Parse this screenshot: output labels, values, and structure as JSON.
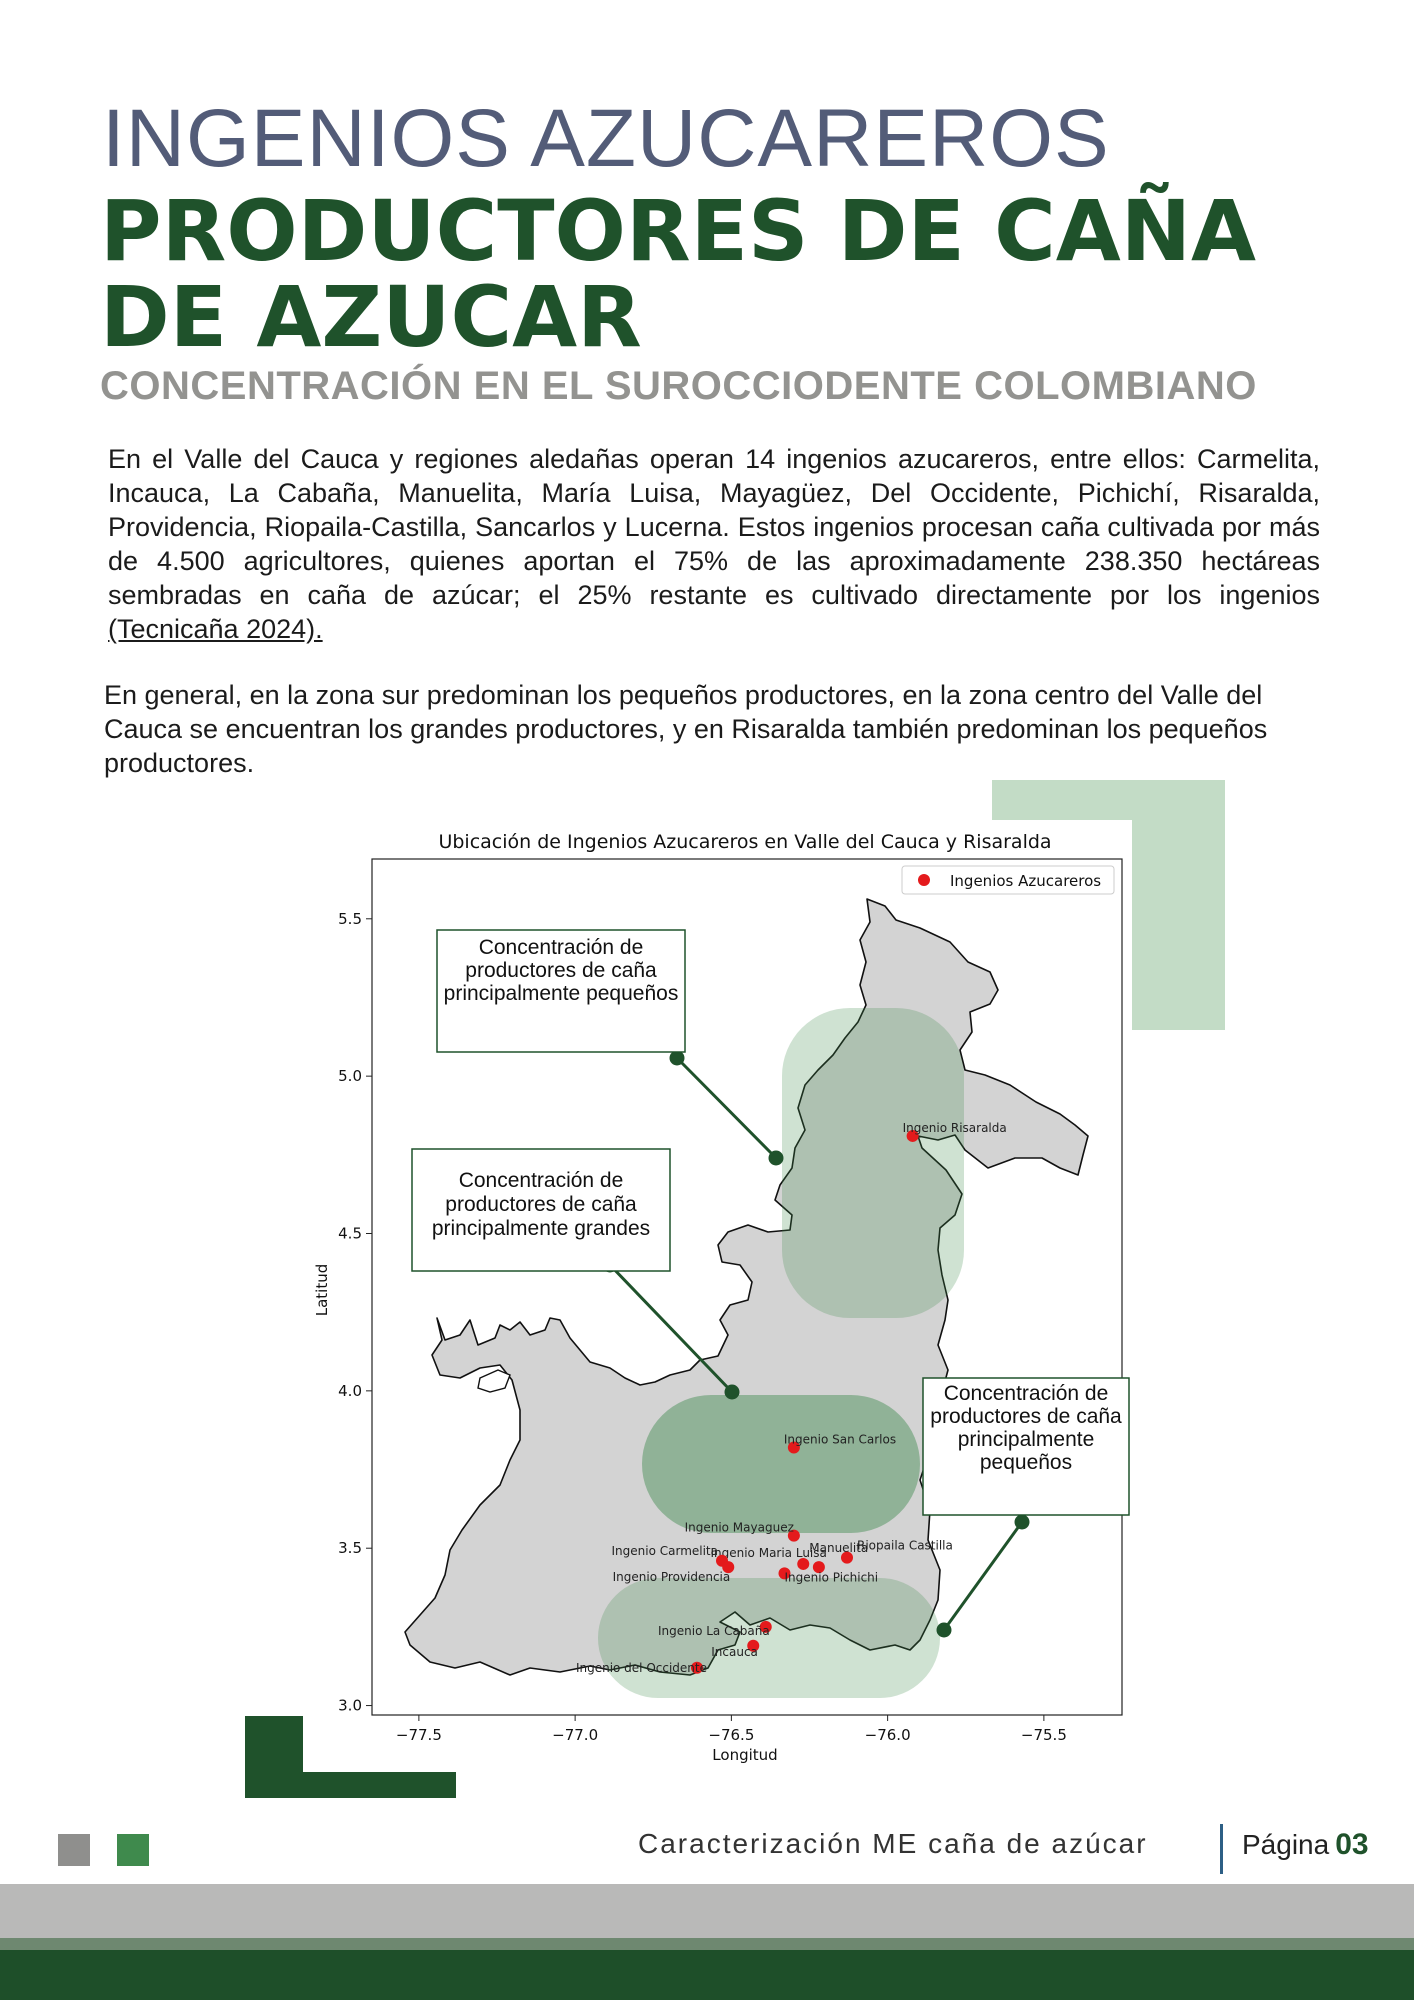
{
  "header": {
    "title_line1": "INGENIOS AZUCAREROS",
    "title_line2": "PRODUCTORES DE CAÑA DE AZUCAR",
    "subtitle": "CONCENTRACIÓN EN EL SUROCCIODENTE COLOMBIANO"
  },
  "body": {
    "paragraph1": "En el Valle del Cauca y regiones aledañas operan 14 ingenios azucareros, entre ellos: Carmelita, Incauca, La Cabaña, Manuelita, María Luisa, Mayagüez, Del Occidente, Pichichí, Risaralda, Providencia, Riopaila-Castilla, Sancarlos y Lucerna.  Estos ingenios procesan caña cultivada por más de 4.500 agricultores, quienes aportan el 75% de las aproximadamente 238.350 hectáreas sembradas en caña de azúcar; el 25% restante es cultivado directamente por los ingenios ",
    "citation": "(Tecnicaña 2024).",
    "paragraph2": "En general, en la zona sur predominan los pequeños productores, en la zona centro del Valle del Cauca se encuentran los grandes productores, y en Risaralda también predominan los pequeños productores."
  },
  "chart_data": {
    "type": "scatter",
    "title": "Ubicación de Ingenios Azucareros en Valle del Cauca y Risaralda",
    "xlabel": "Longitud",
    "ylabel": "Latitud",
    "xlim": [
      -77.65,
      -75.25
    ],
    "ylim": [
      2.97,
      5.69
    ],
    "xticks": [
      -77.5,
      -77.0,
      -76.5,
      -76.0,
      -75.5
    ],
    "xtick_labels": [
      "−77.5",
      "−77.0",
      "−76.5",
      "−76.0",
      "−75.5"
    ],
    "yticks": [
      3.0,
      3.5,
      4.0,
      4.5,
      5.0,
      5.5
    ],
    "ytick_labels": [
      "3.0",
      "3.5",
      "4.0",
      "4.5",
      "5.0",
      "5.5"
    ],
    "grid": false,
    "legend": {
      "position": "top-right",
      "entries": [
        "Ingenios Azucareros"
      ]
    },
    "colors": {
      "points": "#e41a1c",
      "region": "#d3d3d3",
      "zone": "#3f8a4d",
      "annotation": "#1f522b"
    },
    "series": [
      {
        "name": "Ingenios Azucareros",
        "points": [
          {
            "label": "Ingenio Risaralda",
            "x": -75.92,
            "y": 4.81
          },
          {
            "label": "Ingenio San Carlos",
            "x": -76.3,
            "y": 3.82
          },
          {
            "label": "Ingenio Mayaguez",
            "x": -76.3,
            "y": 3.54
          },
          {
            "label": "Manuelita",
            "x": -76.27,
            "y": 3.45
          },
          {
            "label": "Ingenio Maria Luisa",
            "x": -76.22,
            "y": 3.44
          },
          {
            "label": "Riopaila Castilla",
            "x": -76.13,
            "y": 3.47
          },
          {
            "label": "Ingenio Carmelita",
            "x": -76.53,
            "y": 3.46
          },
          {
            "label": "Ingenio Providencia",
            "x": -76.51,
            "y": 3.44
          },
          {
            "label": "Ingenio Pichichi",
            "x": -76.33,
            "y": 3.42
          },
          {
            "label": "Ingenio La Cabaña",
            "x": -76.39,
            "y": 3.25
          },
          {
            "label": "Incauca",
            "x": -76.43,
            "y": 3.19
          },
          {
            "label": "Ingenio del Occidente",
            "x": -76.61,
            "y": 3.12
          }
        ]
      }
    ],
    "annotations": [
      "Concentración de productores de caña principalmente pequeños",
      "Concentración de productores de caña principalmente grandes",
      "Concentración de productores de caña principalmente pequeños"
    ]
  },
  "footer": {
    "document": "Caracterización ME caña de azúcar",
    "page_label": "Página",
    "page_number": "03"
  }
}
